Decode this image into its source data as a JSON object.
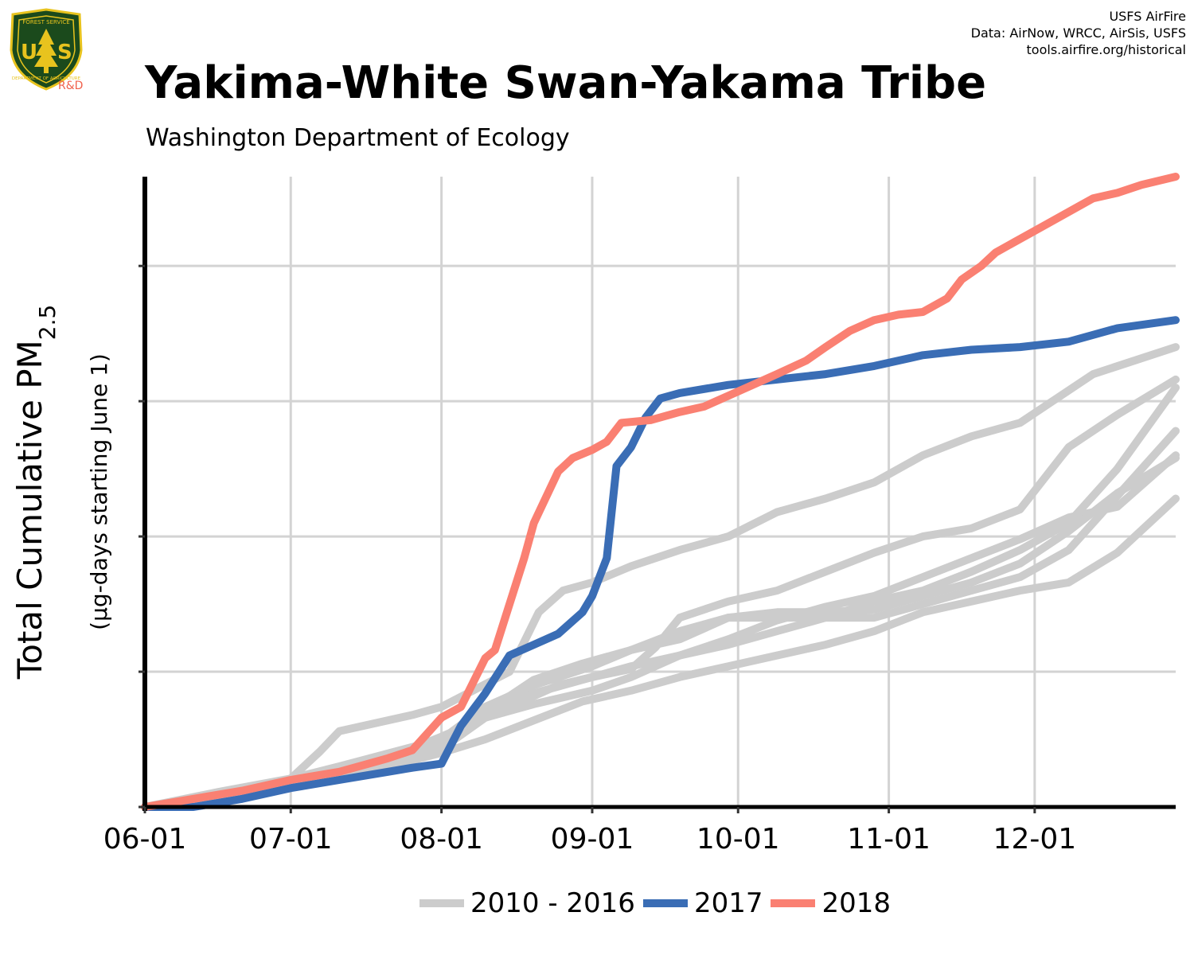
{
  "header": {
    "title": "Yakima-White Swan-Yakama Tribe",
    "subtitle": "Washington Department of Ecology",
    "credits": [
      "USFS AirFire",
      "Data: AirNow, WRCC, AirSis, USFS",
      "tools.airfire.org/historical"
    ],
    "logo": {
      "text_top": "FOREST SERVICE",
      "text_mid": "USFS",
      "text_bottom": "DEPARTMENT OF AGRICULTURE",
      "tag": "R&D",
      "colors": {
        "shield": "#1b4a1c",
        "gold": "#e8c31e",
        "tag": "#f0614c"
      }
    }
  },
  "chart_data": {
    "type": "line",
    "title": "Yakima-White Swan-Yakama Tribe",
    "subtitle": "Washington Department of Ecology",
    "ylabel": "Total Cumulative PM2.5",
    "ylabel_sub": "(µg-days starting June 1)",
    "x_ticks": [
      "06-01",
      "07-01",
      "08-01",
      "09-01",
      "10-01",
      "11-01",
      "12-01"
    ],
    "x_tick_days": [
      0,
      30,
      61,
      92,
      122,
      153,
      183
    ],
    "xlim": [
      0,
      212
    ],
    "ylim": [
      0,
      2330
    ],
    "y_ticks": [
      0,
      500,
      1000,
      1500,
      2000
    ],
    "y_tick_labels_shown": false,
    "grid": true,
    "legend_position": "bottom",
    "legend": [
      {
        "label": "2010 - 2016",
        "color": "#cccccc"
      },
      {
        "label": "2017",
        "color": "#3a6db5"
      },
      {
        "label": "2018",
        "color": "#fa8072"
      }
    ],
    "series": [
      {
        "name": "2010 - 2016",
        "group": "2010 - 2016",
        "color": "#cccccc",
        "points": [
          [
            0,
            0
          ],
          [
            15,
            55
          ],
          [
            30,
            105
          ],
          [
            36,
            205
          ],
          [
            40,
            280
          ],
          [
            55,
            340
          ],
          [
            61,
            370
          ],
          [
            75,
            500
          ],
          [
            81,
            720
          ],
          [
            86,
            800
          ],
          [
            92,
            830
          ],
          [
            100,
            890
          ],
          [
            110,
            950
          ],
          [
            120,
            1000
          ],
          [
            130,
            1090
          ],
          [
            140,
            1140
          ],
          [
            150,
            1200
          ],
          [
            160,
            1300
          ],
          [
            170,
            1370
          ],
          [
            180,
            1420
          ],
          [
            195,
            1600
          ],
          [
            212,
            1700
          ]
        ]
      },
      {
        "name": "2010 - 2016",
        "group": "2010 - 2016",
        "color": "#cccccc",
        "points": [
          [
            0,
            0
          ],
          [
            30,
            75
          ],
          [
            50,
            160
          ],
          [
            61,
            215
          ],
          [
            70,
            330
          ],
          [
            85,
            450
          ],
          [
            92,
            480
          ],
          [
            100,
            510
          ],
          [
            105,
            590
          ],
          [
            110,
            700
          ],
          [
            120,
            760
          ],
          [
            130,
            800
          ],
          [
            140,
            870
          ],
          [
            150,
            940
          ],
          [
            160,
            1000
          ],
          [
            170,
            1030
          ],
          [
            180,
            1100
          ],
          [
            190,
            1330
          ],
          [
            200,
            1450
          ],
          [
            212,
            1580
          ]
        ]
      },
      {
        "name": "2010 - 2016",
        "group": "2010 - 2016",
        "color": "#cccccc",
        "points": [
          [
            0,
            0
          ],
          [
            30,
            80
          ],
          [
            50,
            170
          ],
          [
            61,
            250
          ],
          [
            70,
            370
          ],
          [
            80,
            450
          ],
          [
            92,
            520
          ],
          [
            100,
            580
          ],
          [
            110,
            650
          ],
          [
            120,
            700
          ],
          [
            130,
            700
          ],
          [
            140,
            700
          ],
          [
            150,
            700
          ],
          [
            160,
            750
          ],
          [
            170,
            800
          ],
          [
            180,
            850
          ],
          [
            190,
            950
          ],
          [
            200,
            1150
          ],
          [
            212,
            1390
          ]
        ]
      },
      {
        "name": "2010 - 2016",
        "group": "2010 - 2016",
        "color": "#cccccc",
        "points": [
          [
            0,
            0
          ],
          [
            30,
            90
          ],
          [
            50,
            180
          ],
          [
            61,
            260
          ],
          [
            70,
            330
          ],
          [
            80,
            380
          ],
          [
            92,
            430
          ],
          [
            100,
            480
          ],
          [
            110,
            560
          ],
          [
            120,
            620
          ],
          [
            130,
            690
          ],
          [
            140,
            740
          ],
          [
            150,
            780
          ],
          [
            160,
            850
          ],
          [
            170,
            920
          ],
          [
            180,
            990
          ],
          [
            190,
            1070
          ],
          [
            200,
            1110
          ],
          [
            212,
            1300
          ]
        ]
      },
      {
        "name": "2010 - 2016",
        "group": "2010 - 2016",
        "color": "#cccccc",
        "points": [
          [
            0,
            0
          ],
          [
            20,
            60
          ],
          [
            40,
            150
          ],
          [
            61,
            250
          ],
          [
            70,
            350
          ],
          [
            80,
            420
          ],
          [
            90,
            470
          ],
          [
            100,
            520
          ],
          [
            110,
            560
          ],
          [
            120,
            600
          ],
          [
            130,
            650
          ],
          [
            140,
            700
          ],
          [
            150,
            760
          ],
          [
            160,
            800
          ],
          [
            170,
            870
          ],
          [
            180,
            950
          ],
          [
            190,
            1050
          ],
          [
            200,
            1250
          ],
          [
            212,
            1550
          ]
        ]
      },
      {
        "name": "2010 - 2016",
        "group": "2010 - 2016",
        "color": "#cccccc",
        "points": [
          [
            0,
            0
          ],
          [
            30,
            80
          ],
          [
            50,
            150
          ],
          [
            61,
            200
          ],
          [
            70,
            250
          ],
          [
            80,
            320
          ],
          [
            90,
            390
          ],
          [
            100,
            430
          ],
          [
            110,
            480
          ],
          [
            120,
            520
          ],
          [
            130,
            560
          ],
          [
            140,
            600
          ],
          [
            150,
            650
          ],
          [
            160,
            720
          ],
          [
            170,
            760
          ],
          [
            180,
            800
          ],
          [
            190,
            830
          ],
          [
            200,
            940
          ],
          [
            212,
            1140
          ]
        ]
      },
      {
        "name": "2010 - 2016",
        "group": "2010 - 2016",
        "color": "#cccccc",
        "points": [
          [
            0,
            0
          ],
          [
            30,
            85
          ],
          [
            50,
            170
          ],
          [
            61,
            240
          ],
          [
            70,
            350
          ],
          [
            80,
            470
          ],
          [
            90,
            530
          ],
          [
            100,
            580
          ],
          [
            110,
            620
          ],
          [
            120,
            700
          ],
          [
            130,
            720
          ],
          [
            140,
            720
          ],
          [
            150,
            730
          ],
          [
            160,
            780
          ],
          [
            170,
            830
          ],
          [
            180,
            900
          ],
          [
            190,
            1020
          ],
          [
            200,
            1160
          ],
          [
            212,
            1290
          ]
        ]
      },
      {
        "name": "2017",
        "group": "2017",
        "color": "#3a6db5",
        "points": [
          [
            0,
            0
          ],
          [
            10,
            0
          ],
          [
            20,
            30
          ],
          [
            30,
            70
          ],
          [
            40,
            100
          ],
          [
            50,
            130
          ],
          [
            55,
            145
          ],
          [
            61,
            160
          ],
          [
            65,
            300
          ],
          [
            70,
            420
          ],
          [
            75,
            560
          ],
          [
            80,
            600
          ],
          [
            85,
            640
          ],
          [
            90,
            720
          ],
          [
            92,
            780
          ],
          [
            95,
            920
          ],
          [
            97,
            1260
          ],
          [
            100,
            1330
          ],
          [
            103,
            1440
          ],
          [
            106,
            1510
          ],
          [
            110,
            1530
          ],
          [
            120,
            1560
          ],
          [
            130,
            1580
          ],
          [
            140,
            1600
          ],
          [
            150,
            1630
          ],
          [
            160,
            1670
          ],
          [
            170,
            1690
          ],
          [
            180,
            1700
          ],
          [
            190,
            1720
          ],
          [
            200,
            1770
          ],
          [
            212,
            1800
          ]
        ]
      },
      {
        "name": "2018",
        "group": "2018",
        "color": "#fa8072",
        "points": [
          [
            0,
            0
          ],
          [
            10,
            30
          ],
          [
            20,
            60
          ],
          [
            30,
            100
          ],
          [
            40,
            130
          ],
          [
            50,
            180
          ],
          [
            55,
            210
          ],
          [
            61,
            330
          ],
          [
            65,
            370
          ],
          [
            70,
            550
          ],
          [
            72,
            580
          ],
          [
            75,
            750
          ],
          [
            78,
            920
          ],
          [
            80,
            1050
          ],
          [
            85,
            1240
          ],
          [
            88,
            1290
          ],
          [
            92,
            1320
          ],
          [
            95,
            1350
          ],
          [
            98,
            1420
          ],
          [
            104,
            1430
          ],
          [
            110,
            1460
          ],
          [
            115,
            1480
          ],
          [
            120,
            1520
          ],
          [
            125,
            1560
          ],
          [
            130,
            1600
          ],
          [
            136,
            1650
          ],
          [
            140,
            1700
          ],
          [
            145,
            1760
          ],
          [
            150,
            1800
          ],
          [
            155,
            1820
          ],
          [
            160,
            1830
          ],
          [
            165,
            1880
          ],
          [
            168,
            1950
          ],
          [
            172,
            2000
          ],
          [
            175,
            2050
          ],
          [
            180,
            2100
          ],
          [
            185,
            2150
          ],
          [
            190,
            2200
          ],
          [
            195,
            2250
          ],
          [
            200,
            2270
          ],
          [
            205,
            2300
          ],
          [
            212,
            2330
          ]
        ]
      }
    ]
  }
}
